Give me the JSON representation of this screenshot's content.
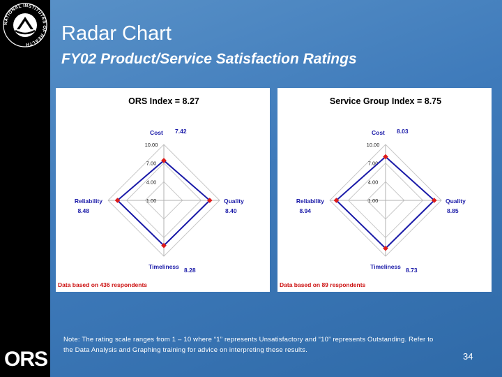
{
  "header": {
    "title": "Radar Chart",
    "subtitle": "FY02 Product/Service Satisfaction Ratings"
  },
  "logo": {
    "text": "NATIONAL INSTITUTES OF HEALTH",
    "ors": "ORS"
  },
  "note": "Note: The rating scale ranges from 1 – 10 where “1” represents Unsatisfactory and “10” represents Outstanding. Refer to the Data Analysis and Graphing training for advice on interpreting these results.",
  "page_number": "34",
  "colors": {
    "background": "#4a86c2",
    "series": "#1a1aa8",
    "marker": "#dd1b1b",
    "value_label": "#1a1aa8",
    "footnote": "#cc1111",
    "tick_label": "#222222"
  },
  "chart_data": [
    {
      "type": "radar",
      "title": "ORS Index = 8.27",
      "axes": [
        "Cost",
        "Quality",
        "Timeliness",
        "Reliability"
      ],
      "values": [
        7.42,
        8.4,
        8.28,
        8.48
      ],
      "value_labels": [
        "7.42",
        "8.40",
        "8.28",
        "8.48"
      ],
      "ticks": [
        1,
        4,
        7,
        10
      ],
      "tick_labels": [
        "1.00",
        "4.00",
        "7.00",
        "10.00"
      ],
      "range": [
        1,
        10
      ],
      "footnote": "Data based on 436 respondents"
    },
    {
      "type": "radar",
      "title": "Service Group Index = 8.75",
      "axes": [
        "Cost",
        "Quality",
        "Timeliness",
        "Reliability"
      ],
      "values": [
        8.03,
        8.85,
        8.73,
        8.94
      ],
      "value_labels": [
        "8.03",
        "8.85",
        "8.73",
        "8.94"
      ],
      "ticks": [
        1,
        4,
        7,
        10
      ],
      "tick_labels": [
        "1.00",
        "4.00",
        "7.00",
        "10.00"
      ],
      "range": [
        1,
        10
      ],
      "footnote": "Data based on 89 respondents"
    }
  ]
}
